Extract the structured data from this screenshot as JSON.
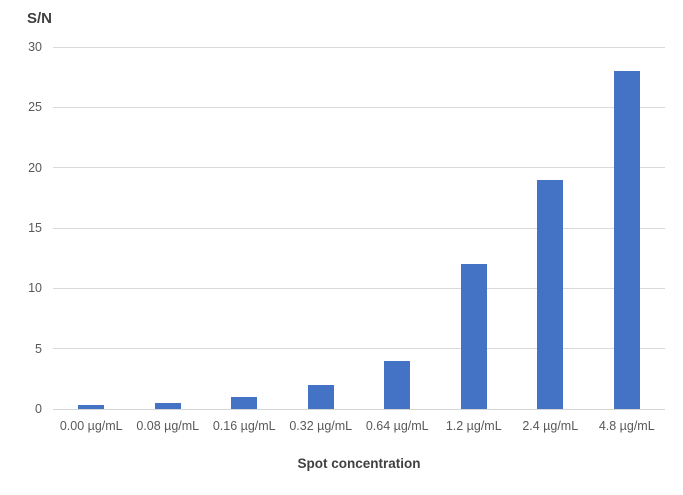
{
  "chart_data": {
    "type": "bar",
    "title": "S/N",
    "xlabel": "Spot concentration",
    "ylabel": "S/N",
    "categories": [
      "0.00 µg/mL",
      "0.08 µg/mL",
      "0.16 µg/mL",
      "0.32 µg/mL",
      "0.64 µg/mL",
      "1.2 µg/mL",
      "2.4 µg/mL",
      "4.8 µg/mL"
    ],
    "values": [
      0.3,
      0.5,
      1,
      2,
      4,
      12,
      19,
      28
    ],
    "ylim": [
      0,
      30
    ],
    "yticks": [
      0,
      5,
      10,
      15,
      20,
      25,
      30
    ],
    "grid": true,
    "legend": false,
    "colors": {
      "bar": "#4472C4",
      "gridline": "#d9d9d9",
      "axis_line": "#d6d6d6",
      "tick_text": "#595959",
      "title_text": "#404040"
    }
  }
}
